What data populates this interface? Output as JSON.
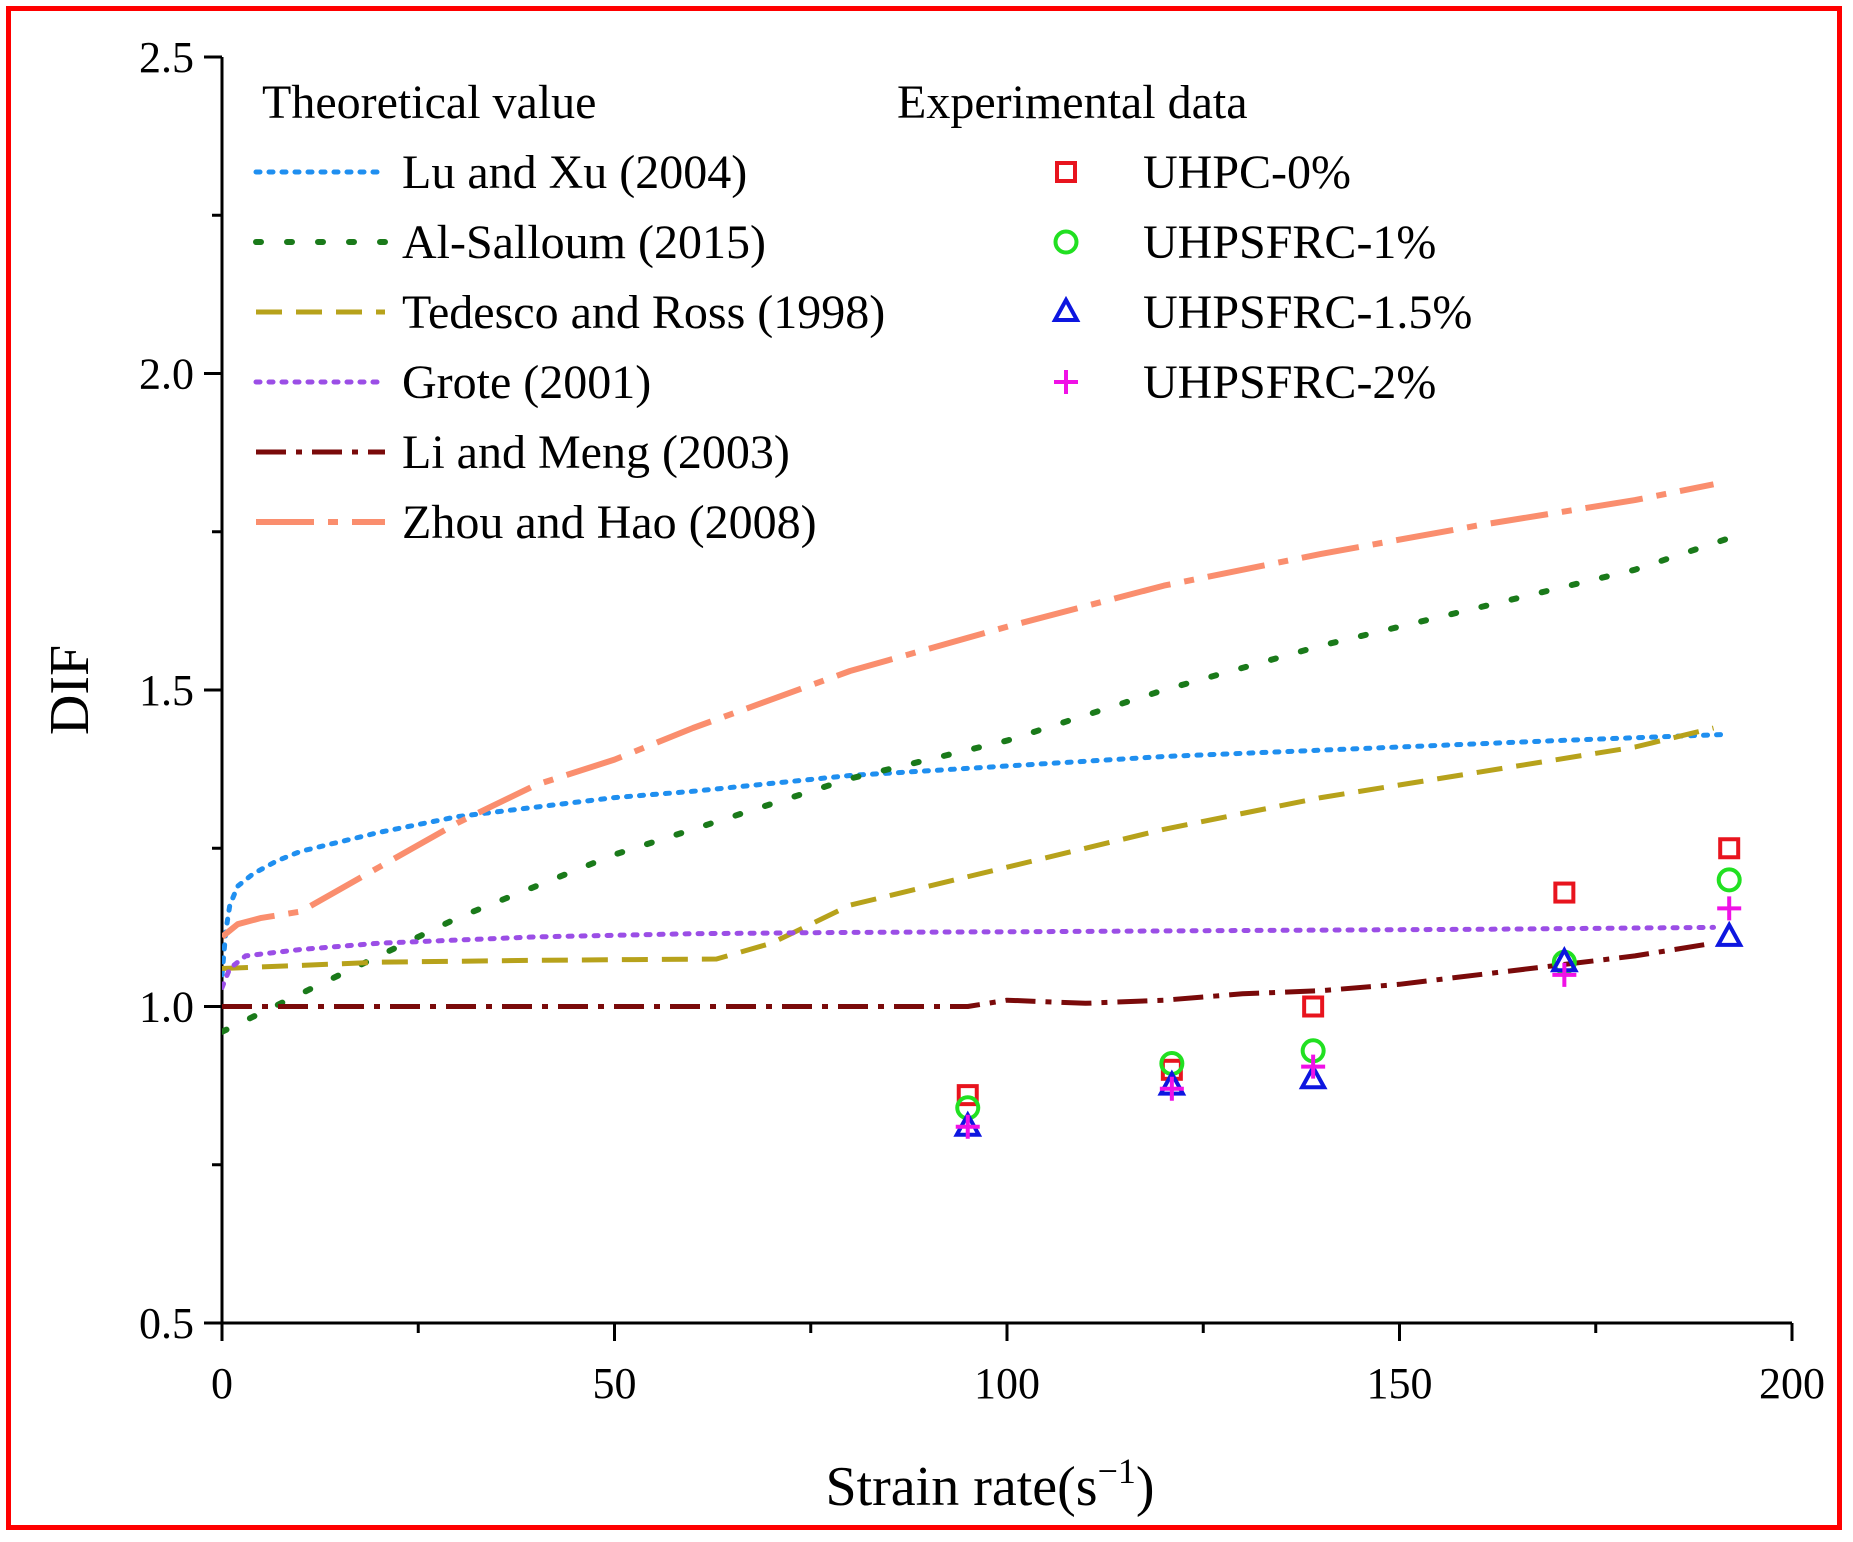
{
  "chart_data": {
    "type": "line+scatter",
    "xlabel": "Strain rate(s",
    "xlabel_sup": "−1",
    "xlabel_end": ")",
    "ylabel": "DIF",
    "xlim": [
      0,
      200
    ],
    "ylim": [
      0.5,
      2.5
    ],
    "x_ticks": [
      0,
      50,
      100,
      150,
      200
    ],
    "x_tick_labels": [
      "0",
      "50",
      "100",
      "150",
      "200"
    ],
    "y_ticks": [
      0.5,
      1.0,
      1.5,
      2.0,
      2.5
    ],
    "y_tick_labels": [
      "0.5",
      "1.0",
      "1.5",
      "2.0",
      "2.5"
    ],
    "legend_theoretical_title": "Theoretical value",
    "legend_experimental_title": "Experimental data",
    "theoretical_series": [
      {
        "name": "Lu and Xu (2004)",
        "color": "#1f8ff0",
        "style": "dotted",
        "points": [
          [
            0,
            1.05
          ],
          [
            0.5,
            1.12
          ],
          [
            1,
            1.16
          ],
          [
            2,
            1.19
          ],
          [
            4,
            1.21
          ],
          [
            7,
            1.23
          ],
          [
            10,
            1.245
          ],
          [
            15,
            1.26
          ],
          [
            20,
            1.275
          ],
          [
            30,
            1.3
          ],
          [
            40,
            1.315
          ],
          [
            50,
            1.33
          ],
          [
            60,
            1.34
          ],
          [
            80,
            1.365
          ],
          [
            100,
            1.38
          ],
          [
            120,
            1.395
          ],
          [
            150,
            1.41
          ],
          [
            170,
            1.42
          ],
          [
            192,
            1.43
          ]
        ]
      },
      {
        "name": "Al-Salloum (2015)",
        "color": "#1a7a1a",
        "style": "dotted-sparse",
        "points": [
          [
            0,
            0.96
          ],
          [
            5,
            0.99
          ],
          [
            10,
            1.02
          ],
          [
            20,
            1.08
          ],
          [
            30,
            1.14
          ],
          [
            40,
            1.19
          ],
          [
            50,
            1.24
          ],
          [
            60,
            1.28
          ],
          [
            70,
            1.32
          ],
          [
            80,
            1.36
          ],
          [
            100,
            1.42
          ],
          [
            120,
            1.5
          ],
          [
            140,
            1.57
          ],
          [
            160,
            1.63
          ],
          [
            180,
            1.69
          ],
          [
            192,
            1.74
          ]
        ]
      },
      {
        "name": "Tedesco and Ross (1998)",
        "color": "#b7a21b",
        "style": "dashed",
        "points": [
          [
            0,
            1.06
          ],
          [
            10,
            1.065
          ],
          [
            20,
            1.07
          ],
          [
            40,
            1.073
          ],
          [
            63,
            1.075
          ],
          [
            70,
            1.1
          ],
          [
            80,
            1.16
          ],
          [
            100,
            1.22
          ],
          [
            120,
            1.28
          ],
          [
            140,
            1.33
          ],
          [
            160,
            1.37
          ],
          [
            180,
            1.41
          ],
          [
            190,
            1.44
          ]
        ]
      },
      {
        "name": "Grote (2001)",
        "color": "#9b4ee6",
        "style": "dotted",
        "points": [
          [
            0,
            1.03
          ],
          [
            1,
            1.06
          ],
          [
            3,
            1.08
          ],
          [
            10,
            1.09
          ],
          [
            20,
            1.1
          ],
          [
            40,
            1.11
          ],
          [
            60,
            1.115
          ],
          [
            80,
            1.117
          ],
          [
            100,
            1.118
          ],
          [
            130,
            1.12
          ],
          [
            160,
            1.122
          ],
          [
            190,
            1.125
          ]
        ]
      },
      {
        "name": "Li and Meng (2003)",
        "color": "#7a0a0a",
        "style": "dash-dot",
        "points": [
          [
            0,
            1.0
          ],
          [
            50,
            1.0
          ],
          [
            95,
            1.0
          ],
          [
            100,
            1.01
          ],
          [
            110,
            1.005
          ],
          [
            120,
            1.01
          ],
          [
            130,
            1.02
          ],
          [
            140,
            1.025
          ],
          [
            150,
            1.035
          ],
          [
            160,
            1.05
          ],
          [
            170,
            1.065
          ],
          [
            180,
            1.08
          ],
          [
            190,
            1.1
          ]
        ]
      },
      {
        "name": "Zhou and Hao (2008)",
        "color": "#fa8e6e",
        "style": "long-dash-dot",
        "points": [
          [
            0,
            1.11
          ],
          [
            2,
            1.13
          ],
          [
            5,
            1.14
          ],
          [
            10,
            1.15
          ],
          [
            20,
            1.22
          ],
          [
            30,
            1.29
          ],
          [
            40,
            1.35
          ],
          [
            50,
            1.39
          ],
          [
            60,
            1.44
          ],
          [
            80,
            1.53
          ],
          [
            100,
            1.6
          ],
          [
            120,
            1.665
          ],
          [
            140,
            1.715
          ],
          [
            160,
            1.76
          ],
          [
            180,
            1.8
          ],
          [
            190,
            1.825
          ]
        ]
      }
    ],
    "experimental_series": [
      {
        "name": "UHPC-0%",
        "marker": "square",
        "color": "#e8141e",
        "points": [
          [
            95,
            0.86
          ],
          [
            121,
            0.9
          ],
          [
            139,
            1.0
          ],
          [
            171,
            1.18
          ],
          [
            192,
            1.25
          ]
        ]
      },
      {
        "name": "UHPSFRC-1%",
        "marker": "circle",
        "color": "#21e021",
        "points": [
          [
            95,
            0.84
          ],
          [
            121,
            0.91
          ],
          [
            139,
            0.93
          ],
          [
            171,
            1.07
          ],
          [
            192,
            1.2
          ]
        ]
      },
      {
        "name": "UHPSFRC-1.5%",
        "marker": "triangle",
        "color": "#0d16e0",
        "points": [
          [
            95,
            0.81
          ],
          [
            121,
            0.875
          ],
          [
            139,
            0.885
          ],
          [
            171,
            1.07
          ],
          [
            192,
            1.11
          ]
        ]
      },
      {
        "name": "UHPSFRC-2%",
        "marker": "plus",
        "color": "#f011e6",
        "points": [
          [
            95,
            0.81
          ],
          [
            121,
            0.87
          ],
          [
            139,
            0.905
          ],
          [
            171,
            1.05
          ],
          [
            192,
            1.155
          ]
        ]
      }
    ]
  }
}
